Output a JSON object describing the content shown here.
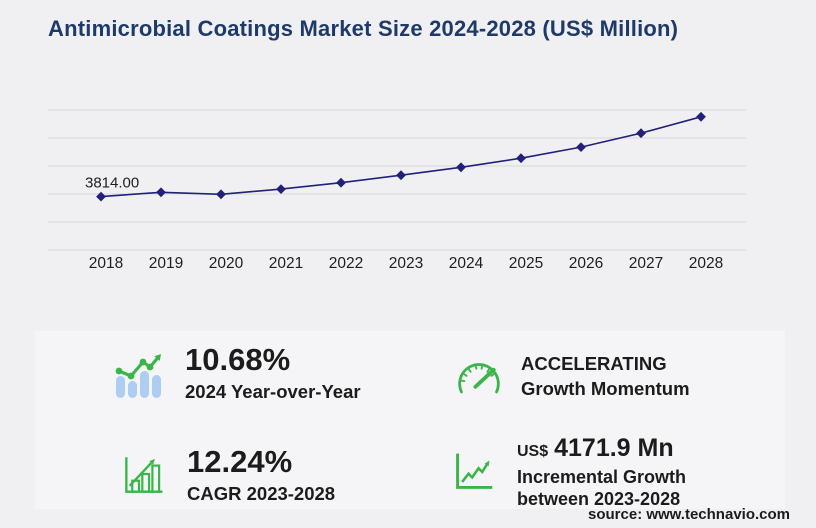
{
  "title": "Antimicrobial Coatings Market Size 2024-2028 (US$ Million)",
  "source": "source: www.technavio.com",
  "colors": {
    "title_navy": "#1e3a6b",
    "line_navy": "#21217a",
    "gridline": "#d8d8d8",
    "green": "#3bb54a",
    "light_blue": "#aecdf2",
    "text_dark": "#1f1f1f",
    "page_bg": "#f0f0f2",
    "panel_bg": "#f5f5f7"
  },
  "chart_data": {
    "type": "line",
    "title": "Antimicrobial Coatings Market Size 2024-2028 (US$ Million)",
    "x": [
      2018,
      2019,
      2020,
      2021,
      2022,
      2023,
      2024,
      2025,
      2026,
      2027,
      2028
    ],
    "series": [
      {
        "name": "Market size (US$ million)",
        "values": [
          3814.0,
          4120,
          3975,
          4350,
          4810,
          5340,
          5910,
          6560,
          7350,
          8340,
          9512
        ]
      }
    ],
    "first_point_label": "3814.00",
    "xlabel": "",
    "ylabel": "",
    "ylim": [
      0,
      10000
    ],
    "gridline_count": 6,
    "grid": true,
    "legend": false,
    "marker": "diamond"
  },
  "stats": {
    "yoy": {
      "value": "10.68%",
      "label": "2024 Year-over-Year"
    },
    "cagr": {
      "value": "12.24%",
      "label": "CAGR 2023-2028"
    },
    "momentum": {
      "line1": "ACCELERATING",
      "line2": "Growth Momentum"
    },
    "incremental": {
      "currency": "US$",
      "value": "4171.9 Mn",
      "label_line1": "Incremental Growth",
      "label_line2": "between 2023-2028"
    }
  }
}
